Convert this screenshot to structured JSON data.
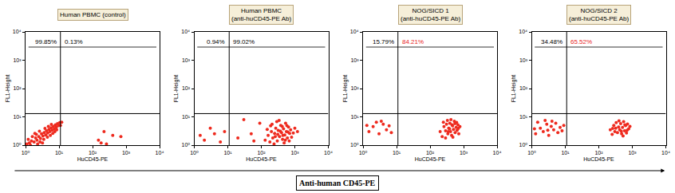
{
  "chart_data": [
    {
      "type": "scatter",
      "title": "Human PBMC (control)",
      "xlabel": "HuCD45-PE",
      "ylabel": "FL1-Height",
      "log": true,
      "color": "#ee2a1e",
      "xlim": [
        1,
        10000
      ],
      "ylim": [
        1,
        10000
      ],
      "xticks": [
        {
          "value": 1,
          "label": "10⁰"
        },
        {
          "value": 10,
          "label": "10¹"
        },
        {
          "value": 100,
          "label": "10²"
        },
        {
          "value": 1000,
          "label": "10³"
        },
        {
          "value": 10000,
          "label": "10⁴"
        }
      ],
      "yticks": [
        {
          "value": 1,
          "label": "10⁰"
        },
        {
          "value": 10,
          "label": "10¹"
        },
        {
          "value": 100,
          "label": "10²"
        },
        {
          "value": 1000,
          "label": "10³"
        },
        {
          "value": 10000,
          "label": "10⁴"
        }
      ],
      "gates": {
        "x": 11,
        "y": 13
      },
      "quadrant_labels": [
        {
          "text": "99.85%",
          "color": "#000000"
        },
        {
          "text": "0.13%",
          "color": "#000000"
        }
      ],
      "x": [
        1.1,
        1.3,
        1.5,
        1.8,
        2,
        2.2,
        2.5,
        2.8,
        3,
        3.3,
        3.6,
        4,
        4.2,
        4.6,
        5,
        5.3,
        5.8,
        6.2,
        6.8,
        7.2,
        7.8,
        8.3,
        9,
        9.6,
        10.5,
        1.2,
        1.6,
        2.1,
        2.7,
        3.5,
        4.5,
        5.5,
        6.5,
        7.5,
        8.5,
        1.4,
        2.3,
        3.2,
        1.9,
        2.6,
        3.8,
        4.8,
        5.9,
        11,
        12,
        150,
        220,
        400,
        180,
        700,
        260
      ],
      "y": [
        1.1,
        1.2,
        1.4,
        1.3,
        1.8,
        1.5,
        2,
        1.7,
        2.5,
        2.1,
        2.8,
        2.3,
        3.2,
        2.7,
        3.6,
        3,
        4.1,
        3.4,
        4.6,
        3.8,
        5.2,
        4.3,
        5.8,
        4.9,
        6.2,
        1.6,
        2,
        2.4,
        1.3,
        1.6,
        1.9,
        2.2,
        2.6,
        3,
        3.5,
        1,
        1.1,
        1.2,
        2.6,
        3.1,
        3.9,
        4.6,
        5.4,
        5,
        6.5,
        1.5,
        3,
        2.2,
        1.2,
        2,
        1.1
      ]
    },
    {
      "type": "scatter",
      "title": "Human PBMC (anti-huCD45-PE Ab)",
      "xlabel": "HuCD45-PE",
      "ylabel": "FL1-Height",
      "log": true,
      "color": "#ee2a1e",
      "xlim": [
        1,
        10000
      ],
      "ylim": [
        1,
        10000
      ],
      "xticks": [
        {
          "value": 1,
          "label": "10⁰"
        },
        {
          "value": 10,
          "label": "10¹"
        },
        {
          "value": 100,
          "label": "10²"
        },
        {
          "value": 1000,
          "label": "10³"
        },
        {
          "value": 10000,
          "label": "10⁴"
        }
      ],
      "yticks": [
        {
          "value": 1,
          "label": "10⁰"
        },
        {
          "value": 10,
          "label": "10¹"
        },
        {
          "value": 100,
          "label": "10²"
        },
        {
          "value": 1000,
          "label": "10³"
        },
        {
          "value": 10000,
          "label": "10⁴"
        }
      ],
      "gates": {
        "x": 11,
        "y": 13
      },
      "quadrant_labels": [
        {
          "text": "0.94%",
          "color": "#000000"
        },
        {
          "text": "99.02%",
          "color": "#000000"
        }
      ],
      "x": [
        130,
        160,
        180,
        200,
        220,
        250,
        270,
        300,
        320,
        350,
        380,
        400,
        430,
        460,
        500,
        530,
        560,
        600,
        650,
        700,
        750,
        800,
        210,
        290,
        340,
        420,
        480,
        240,
        150,
        190,
        260,
        310,
        370,
        440,
        520,
        580,
        620,
        680,
        900,
        1000,
        2,
        4,
        6,
        8,
        3,
        1.5,
        20,
        50,
        60,
        90,
        1200,
        30
      ],
      "y": [
        1.5,
        2.2,
        1.3,
        3,
        1.8,
        2.6,
        4,
        1.4,
        3.3,
        2,
        5,
        2.8,
        1.6,
        3.8,
        2.3,
        6,
        3,
        1.8,
        4.4,
        2.6,
        3.5,
        1.9,
        5.5,
        6.8,
        7.5,
        4.6,
        1.2,
        1.1,
        3.6,
        4.8,
        2,
        2.4,
        3.1,
        2.2,
        1.5,
        4.9,
        2.9,
        1.4,
        2.7,
        4,
        1.5,
        2.5,
        1.3,
        3,
        4,
        2.2,
        1.8,
        2.5,
        1.4,
        6,
        3,
        8
      ]
    },
    {
      "type": "scatter",
      "title": "NOG/SICD 1 (anti-huCD45-PE Ab)",
      "xlabel": "HuCD45-PE",
      "ylabel": "FL1-Height",
      "log": true,
      "color": "#ee2a1e",
      "xlim": [
        1,
        10000
      ],
      "ylim": [
        1,
        10000
      ],
      "xticks": [
        {
          "value": 1,
          "label": "10⁰"
        },
        {
          "value": 10,
          "label": "10¹"
        },
        {
          "value": 100,
          "label": "10²"
        },
        {
          "value": 1000,
          "label": "10³"
        },
        {
          "value": 10000,
          "label": "10⁴"
        }
      ],
      "yticks": [
        {
          "value": 1,
          "label": "10⁰"
        },
        {
          "value": 10,
          "label": "10¹"
        },
        {
          "value": 100,
          "label": "10²"
        },
        {
          "value": 1000,
          "label": "10³"
        },
        {
          "value": 10000,
          "label": "10⁴"
        }
      ],
      "gates": {
        "x": 11,
        "y": 13
      },
      "quadrant_labels": [
        {
          "text": "15.79%",
          "color": "#000000"
        },
        {
          "text": "84.21%",
          "color": "#e8251c"
        }
      ],
      "x": [
        200,
        230,
        260,
        290,
        310,
        340,
        360,
        390,
        410,
        440,
        470,
        500,
        530,
        560,
        600,
        640,
        680,
        720,
        250,
        330,
        420,
        480,
        380,
        290,
        550,
        620,
        700,
        780,
        450,
        350,
        1.5,
        2,
        3,
        4,
        2.5,
        5,
        7,
        1.3,
        3.5,
        6
      ],
      "y": [
        3,
        2,
        4.5,
        3.2,
        5.5,
        2.5,
        4,
        6,
        3,
        2.2,
        4.8,
        3.6,
        7,
        2.8,
        4.2,
        3.3,
        5.2,
        2.5,
        6.5,
        7.5,
        8,
        1.9,
        3.8,
        1.8,
        5.8,
        6.4,
        3.9,
        4.5,
        5.2,
        3,
        3,
        4.5,
        2.5,
        5.5,
        6.5,
        3.5,
        2.8,
        5,
        7,
        4.8
      ]
    },
    {
      "type": "scatter",
      "title": "NOG/SICD 2 (anti-huCD45-PE Ab)",
      "xlabel": "HuCD45-PE",
      "ylabel": "FL1-Height",
      "log": true,
      "color": "#ee2a1e",
      "xlim": [
        1,
        10000
      ],
      "ylim": [
        1,
        10000
      ],
      "xticks": [
        {
          "value": 1,
          "label": "10⁰"
        },
        {
          "value": 10,
          "label": "10¹"
        },
        {
          "value": 100,
          "label": "10²"
        },
        {
          "value": 1000,
          "label": "10³"
        },
        {
          "value": 10000,
          "label": "10⁴"
        }
      ],
      "yticks": [
        {
          "value": 1,
          "label": "10⁰"
        },
        {
          "value": 10,
          "label": "10¹"
        },
        {
          "value": 100,
          "label": "10²"
        },
        {
          "value": 1000,
          "label": "10³"
        },
        {
          "value": 10000,
          "label": "10⁴"
        }
      ],
      "gates": {
        "x": 11,
        "y": 13
      },
      "quadrant_labels": [
        {
          "text": "34.48%",
          "color": "#000000"
        },
        {
          "text": "65.52%",
          "color": "#e8251c"
        }
      ],
      "x": [
        220,
        250,
        280,
        300,
        330,
        360,
        390,
        420,
        450,
        480,
        510,
        550,
        590,
        630,
        670,
        720,
        780,
        850,
        320,
        400,
        470,
        530,
        600,
        700,
        260,
        1.3,
        1.8,
        2.2,
        2.8,
        3.2,
        3.8,
        4.5,
        5.2,
        6,
        7,
        8,
        1.5,
        2.5,
        4,
        9,
        1.2,
        3
      ],
      "y": [
        3.5,
        2.4,
        5,
        3,
        6.2,
        2.8,
        4.4,
        3.5,
        5.8,
        2.5,
        4.2,
        6.8,
        3.2,
        4.9,
        2.7,
        5.6,
        3.8,
        4.6,
        4,
        7.2,
        3.1,
        2.1,
        5.2,
        3.4,
        3.9,
        2.5,
        4,
        3,
        5.5,
        2.2,
        4.6,
        3.5,
        6,
        2.8,
        4.2,
        3.2,
        6.5,
        7.5,
        7,
        5,
        3.8,
        3.4
      ]
    }
  ],
  "caption": "Anti-human CD45-PE"
}
